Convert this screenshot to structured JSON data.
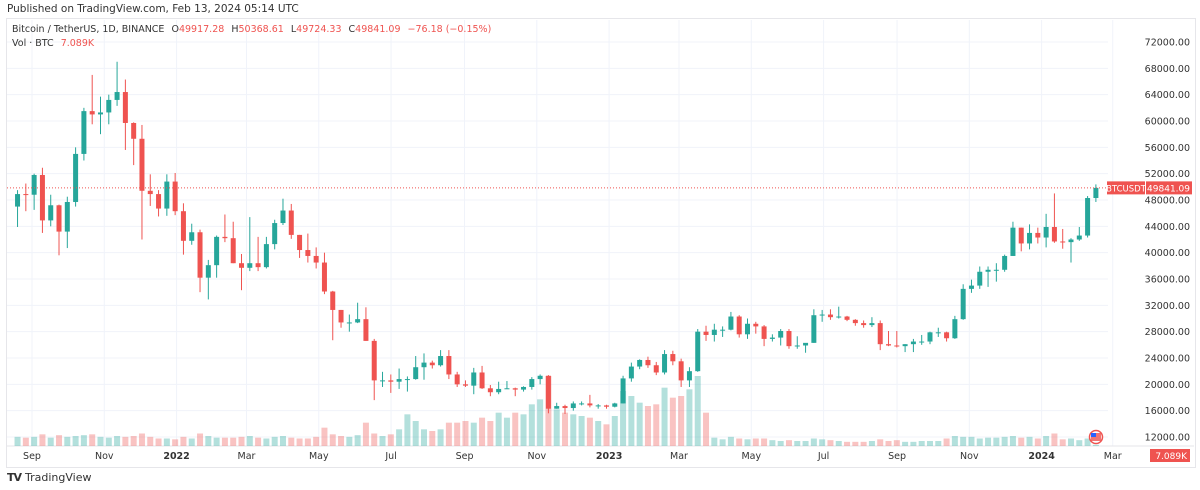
{
  "published": "Published on TradingView.com, Feb 13, 2024 05:14 UTC",
  "legend": {
    "symbol": "Bitcoin / TetherUS, 1D, BINANCE",
    "open_label": "O",
    "open": "49917.28",
    "high_label": "H",
    "high": "50368.61",
    "low_label": "L",
    "low": "49724.33",
    "close_label": "C",
    "close": "49841.09",
    "change": "−76.18 (−0.15%)",
    "vol_label": "Vol · BTC",
    "vol_value": "7.089K"
  },
  "footer": {
    "brand": "TradingView"
  },
  "colors": {
    "up": "#26a69a",
    "down": "#ef5350",
    "grid": "#f0f3fa",
    "price_line": "#ef5350"
  },
  "chart_data": {
    "type": "candlestick",
    "ylim": [
      10000,
      74000
    ],
    "y_ticks": [
      "12000.00",
      "16000.00",
      "20000.00",
      "24000.00",
      "28000.00",
      "32000.00",
      "36000.00",
      "40000.00",
      "44000.00",
      "48000.00",
      "52000.00",
      "56000.00",
      "60000.00",
      "64000.00",
      "68000.00",
      "72000.00"
    ],
    "x_ticks": [
      {
        "label": "Sep",
        "date": "2021-09-01"
      },
      {
        "label": "Nov",
        "date": "2021-11-01"
      },
      {
        "label": "2022",
        "date": "2022-01-01",
        "bold": true
      },
      {
        "label": "Mar",
        "date": "2022-03-01"
      },
      {
        "label": "May",
        "date": "2022-05-01"
      },
      {
        "label": "Jul",
        "date": "2022-07-01"
      },
      {
        "label": "Sep",
        "date": "2022-09-01"
      },
      {
        "label": "Nov",
        "date": "2022-11-01"
      },
      {
        "label": "2023",
        "date": "2023-01-01",
        "bold": true
      },
      {
        "label": "Mar",
        "date": "2023-03-01"
      },
      {
        "label": "May",
        "date": "2023-05-01"
      },
      {
        "label": "Jul",
        "date": "2023-07-01"
      },
      {
        "label": "Sep",
        "date": "2023-09-01"
      },
      {
        "label": "Nov",
        "date": "2023-11-01"
      },
      {
        "label": "2024",
        "date": "2024-01-01",
        "bold": true
      },
      {
        "label": "Mar",
        "date": "2024-03-01"
      }
    ],
    "last_price": {
      "symbol": "BTCUSDT",
      "value": 49841.09,
      "label": "49841.09"
    },
    "last_volume_label": "7.089K",
    "event_marker": "us-flag",
    "dates": [
      "2021-08-16",
      "2021-08-23",
      "2021-08-30",
      "2021-09-06",
      "2021-09-13",
      "2021-09-20",
      "2021-09-27",
      "2021-10-04",
      "2021-10-11",
      "2021-10-18",
      "2021-10-25",
      "2021-11-01",
      "2021-11-08",
      "2021-11-15",
      "2021-11-22",
      "2021-11-29",
      "2021-12-06",
      "2021-12-13",
      "2021-12-20",
      "2021-12-27",
      "2022-01-03",
      "2022-01-10",
      "2022-01-17",
      "2022-01-24",
      "2022-01-31",
      "2022-02-07",
      "2022-02-14",
      "2022-02-21",
      "2022-02-28",
      "2022-03-07",
      "2022-03-14",
      "2022-03-21",
      "2022-03-28",
      "2022-04-04",
      "2022-04-11",
      "2022-04-18",
      "2022-04-25",
      "2022-05-02",
      "2022-05-09",
      "2022-05-16",
      "2022-05-23",
      "2022-05-30",
      "2022-06-06",
      "2022-06-13",
      "2022-06-20",
      "2022-06-27",
      "2022-07-04",
      "2022-07-11",
      "2022-07-18",
      "2022-07-25",
      "2022-08-01",
      "2022-08-08",
      "2022-08-15",
      "2022-08-22",
      "2022-08-29",
      "2022-09-05",
      "2022-09-12",
      "2022-09-19",
      "2022-09-26",
      "2022-10-03",
      "2022-10-10",
      "2022-10-17",
      "2022-10-24",
      "2022-10-31",
      "2022-11-07",
      "2022-11-14",
      "2022-11-21",
      "2022-11-28",
      "2022-12-05",
      "2022-12-12",
      "2022-12-19",
      "2022-12-26",
      "2023-01-02",
      "2023-01-09",
      "2023-01-16",
      "2023-01-23",
      "2023-01-30",
      "2023-02-06",
      "2023-02-13",
      "2023-02-20",
      "2023-02-27",
      "2023-03-06",
      "2023-03-13",
      "2023-03-20",
      "2023-03-27",
      "2023-04-03",
      "2023-04-10",
      "2023-04-17",
      "2023-04-24",
      "2023-05-01",
      "2023-05-08",
      "2023-05-15",
      "2023-05-22",
      "2023-05-29",
      "2023-06-05",
      "2023-06-12",
      "2023-06-19",
      "2023-06-26",
      "2023-07-03",
      "2023-07-10",
      "2023-07-17",
      "2023-07-24",
      "2023-07-31",
      "2023-08-07",
      "2023-08-14",
      "2023-08-21",
      "2023-08-28",
      "2023-09-04",
      "2023-09-11",
      "2023-09-18",
      "2023-09-25",
      "2023-10-02",
      "2023-10-09",
      "2023-10-16",
      "2023-10-23",
      "2023-10-30",
      "2023-11-06",
      "2023-11-13",
      "2023-11-20",
      "2023-11-27",
      "2023-12-04",
      "2023-12-11",
      "2023-12-18",
      "2023-12-25",
      "2024-01-01",
      "2024-01-08",
      "2024-01-15",
      "2024-01-22",
      "2024-01-29",
      "2024-02-05",
      "2024-02-12"
    ],
    "ohlc": [
      [
        47000,
        49500,
        43900,
        48900
      ],
      [
        48900,
        50500,
        46300,
        48800
      ],
      [
        48800,
        52000,
        46500,
        51800
      ],
      [
        51800,
        52900,
        43000,
        44900
      ],
      [
        44900,
        48800,
        44000,
        47200
      ],
      [
        47200,
        47300,
        39600,
        43200
      ],
      [
        43200,
        48500,
        40700,
        47700
      ],
      [
        47700,
        56000,
        47000,
        55000
      ],
      [
        55000,
        62000,
        54000,
        61500
      ],
      [
        61500,
        67000,
        59500,
        61000
      ],
      [
        61000,
        63700,
        58000,
        61300
      ],
      [
        61300,
        64000,
        59500,
        63200
      ],
      [
        63200,
        69000,
        62300,
        64400
      ],
      [
        64400,
        66300,
        55600,
        59700
      ],
      [
        59700,
        59800,
        53300,
        57300
      ],
      [
        57300,
        59400,
        42000,
        49400
      ],
      [
        49400,
        51900,
        47100,
        48900
      ],
      [
        48900,
        49500,
        45500,
        46700
      ],
      [
        46700,
        51900,
        45600,
        50800
      ],
      [
        50800,
        52100,
        45700,
        46300
      ],
      [
        46300,
        47500,
        39700,
        41800
      ],
      [
        41800,
        44400,
        41200,
        43100
      ],
      [
        43100,
        43500,
        34000,
        36200
      ],
      [
        36200,
        38900,
        32900,
        38100
      ],
      [
        38100,
        42600,
        36200,
        42400
      ],
      [
        42400,
        45800,
        41600,
        42200
      ],
      [
        42200,
        44700,
        38400,
        38400
      ],
      [
        38400,
        39800,
        34300,
        37700
      ],
      [
        37700,
        45400,
        37200,
        38400
      ],
      [
        38400,
        42400,
        37200,
        37800
      ],
      [
        37800,
        42400,
        37600,
        41300
      ],
      [
        41300,
        45000,
        40500,
        44500
      ],
      [
        44500,
        48200,
        44200,
        46400
      ],
      [
        46400,
        47400,
        42100,
        42700
      ],
      [
        42700,
        42700,
        39200,
        40400
      ],
      [
        40400,
        42900,
        38500,
        39500
      ],
      [
        39500,
        40800,
        37600,
        38500
      ],
      [
        38500,
        40000,
        33700,
        34100
      ],
      [
        34100,
        34200,
        26700,
        31300
      ],
      [
        31300,
        31300,
        28600,
        29400
      ],
      [
        29400,
        30600,
        28000,
        29400
      ],
      [
        29400,
        32400,
        29300,
        29900
      ],
      [
        29900,
        31700,
        26600,
        26600
      ],
      [
        26600,
        26900,
        17600,
        20600
      ],
      [
        20600,
        21900,
        19600,
        20600
      ],
      [
        20600,
        21500,
        18700,
        20400
      ],
      [
        20400,
        22400,
        19300,
        20800
      ],
      [
        20800,
        21200,
        18900,
        20800
      ],
      [
        20800,
        24300,
        20700,
        22600
      ],
      [
        22600,
        24700,
        20700,
        23300
      ],
      [
        23300,
        23600,
        22400,
        22900
      ],
      [
        22900,
        25200,
        22700,
        24300
      ],
      [
        24300,
        25200,
        20800,
        21500
      ],
      [
        21500,
        21900,
        19600,
        20000
      ],
      [
        20000,
        20600,
        19600,
        19800
      ],
      [
        19800,
        22500,
        18500,
        21800
      ],
      [
        21800,
        22800,
        19300,
        19400
      ],
      [
        19400,
        19900,
        18200,
        18800
      ],
      [
        18800,
        20400,
        18500,
        19300
      ],
      [
        19300,
        20500,
        19300,
        19400
      ],
      [
        19400,
        19500,
        18200,
        19200
      ],
      [
        19200,
        19700,
        18900,
        19600
      ],
      [
        19600,
        21100,
        19200,
        20800
      ],
      [
        20800,
        21500,
        20000,
        21300
      ],
      [
        21300,
        21400,
        15600,
        16300
      ],
      [
        16300,
        17200,
        16300,
        16700
      ],
      [
        16700,
        16900,
        15500,
        16400
      ],
      [
        16400,
        17400,
        16000,
        17100
      ],
      [
        17100,
        17400,
        16800,
        17100
      ],
      [
        17100,
        18400,
        16500,
        16800
      ],
      [
        16800,
        17000,
        16300,
        16800
      ],
      [
        16800,
        16900,
        16300,
        16600
      ],
      [
        16600,
        17200,
        16500,
        17100
      ],
      [
        17100,
        21300,
        17100,
        20900
      ],
      [
        20900,
        23300,
        20400,
        22700
      ],
      [
        22700,
        23800,
        22300,
        23700
      ],
      [
        23700,
        24200,
        22500,
        22900
      ],
      [
        22900,
        23400,
        21400,
        21800
      ],
      [
        21800,
        25200,
        21500,
        24600
      ],
      [
        24600,
        25100,
        22900,
        23500
      ],
      [
        23500,
        23900,
        19600,
        20600
      ],
      [
        20600,
        22600,
        19600,
        22000
      ],
      [
        22000,
        28400,
        21900,
        28000
      ],
      [
        28000,
        28900,
        26600,
        27500
      ],
      [
        27500,
        29200,
        26500,
        28300
      ],
      [
        28300,
        28800,
        27200,
        28300
      ],
      [
        28300,
        31000,
        28200,
        30300
      ],
      [
        30300,
        30500,
        27100,
        27600
      ],
      [
        27600,
        30000,
        26900,
        29200
      ],
      [
        29200,
        29500,
        27700,
        28800
      ],
      [
        28800,
        29000,
        25800,
        26900
      ],
      [
        26900,
        27600,
        26500,
        27100
      ],
      [
        27100,
        28400,
        25900,
        28100
      ],
      [
        28100,
        28400,
        25400,
        25800
      ],
      [
        25800,
        27300,
        25400,
        25900
      ],
      [
        25900,
        26000,
        24800,
        26300
      ],
      [
        26300,
        31400,
        26300,
        30500
      ],
      [
        30500,
        31300,
        29500,
        30600
      ],
      [
        30600,
        31400,
        29800,
        30200
      ],
      [
        30200,
        31800,
        30000,
        30300
      ],
      [
        30300,
        30400,
        29600,
        29800
      ],
      [
        29800,
        29900,
        28900,
        29300
      ],
      [
        29300,
        29700,
        28600,
        29000
      ],
      [
        29000,
        30200,
        28700,
        29300
      ],
      [
        29300,
        29700,
        25200,
        26100
      ],
      [
        26100,
        28100,
        25800,
        25900
      ],
      [
        25900,
        28100,
        25600,
        25800
      ],
      [
        25800,
        26100,
        24900,
        26100
      ],
      [
        26100,
        26900,
        24900,
        26500
      ],
      [
        26500,
        27500,
        26000,
        26500
      ],
      [
        26500,
        28000,
        26100,
        27900
      ],
      [
        27900,
        28600,
        27200,
        27900
      ],
      [
        27900,
        28000,
        26500,
        27000
      ],
      [
        27000,
        30400,
        26900,
        29900
      ],
      [
        29900,
        35200,
        29800,
        34500
      ],
      [
        34500,
        35900,
        33900,
        35000
      ],
      [
        35000,
        37900,
        34500,
        37100
      ],
      [
        37100,
        37900,
        34800,
        37400
      ],
      [
        37400,
        38400,
        35600,
        37400
      ],
      [
        37400,
        39700,
        37100,
        39500
      ],
      [
        39500,
        44700,
        39500,
        43800
      ],
      [
        43800,
        43800,
        40200,
        41400
      ],
      [
        41400,
        44300,
        40500,
        43000
      ],
      [
        43000,
        43800,
        41400,
        42300
      ],
      [
        42300,
        45900,
        40800,
        43900
      ],
      [
        43900,
        49000,
        41500,
        41700
      ],
      [
        41700,
        43600,
        40600,
        41600
      ],
      [
        41600,
        42200,
        38500,
        42000
      ],
      [
        42000,
        43900,
        41800,
        42600
      ],
      [
        42600,
        48600,
        42300,
        48300
      ],
      [
        48300,
        50370,
        47700,
        49841.09
      ]
    ],
    "volume_k": [
      55,
      50,
      55,
      70,
      50,
      65,
      55,
      60,
      65,
      70,
      55,
      50,
      60,
      55,
      60,
      75,
      55,
      45,
      45,
      40,
      55,
      45,
      75,
      60,
      50,
      50,
      50,
      55,
      60,
      50,
      45,
      55,
      60,
      50,
      45,
      45,
      55,
      110,
      70,
      60,
      55,
      65,
      140,
      75,
      60,
      70,
      100,
      190,
      150,
      100,
      90,
      100,
      140,
      140,
      150,
      140,
      170,
      150,
      200,
      170,
      200,
      190,
      250,
      280,
      420,
      220,
      200,
      190,
      180,
      170,
      150,
      130,
      180,
      330,
      300,
      260,
      240,
      250,
      350,
      290,
      300,
      340,
      420,
      200,
      50,
      40,
      55,
      45,
      40,
      45,
      45,
      35,
      30,
      35,
      30,
      30,
      45,
      40,
      35,
      30,
      25,
      25,
      25,
      30,
      40,
      30,
      35,
      25,
      25,
      30,
      30,
      30,
      45,
      60,
      55,
      55,
      45,
      50,
      50,
      55,
      60,
      50,
      55,
      45,
      60,
      75,
      40,
      45,
      35,
      45,
      7.089
    ]
  }
}
